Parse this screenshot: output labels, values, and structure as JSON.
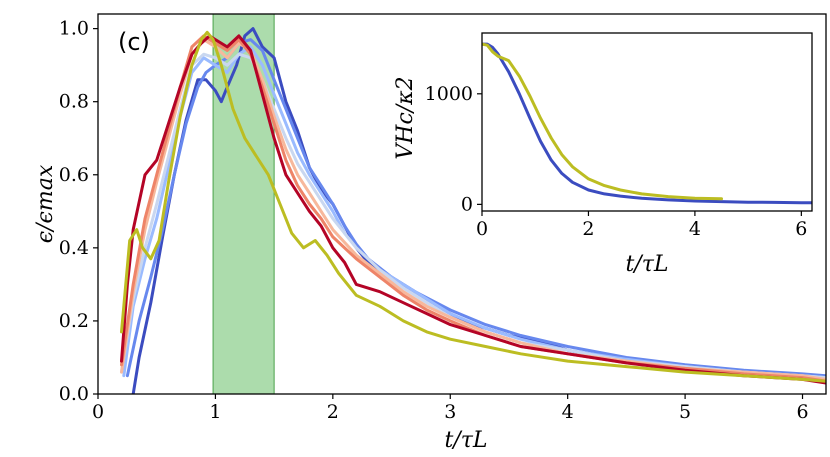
{
  "chart_data": [
    {
      "type": "line",
      "panel_label": "(c)",
      "xlabel": "t/τ_L",
      "ylabel": "ϵ/ϵ_max",
      "xlabel_text": "t/τL",
      "ylabel_text": "ϵ/ϵmax",
      "xlim": [
        0,
        6.2
      ],
      "ylim": [
        0,
        1.04
      ],
      "xticks": [
        0,
        1,
        2,
        3,
        4,
        5,
        6
      ],
      "xtick_labels": [
        "0",
        "1",
        "2",
        "3",
        "4",
        "5",
        "6"
      ],
      "yticks": [
        0.0,
        0.2,
        0.4,
        0.6,
        0.8,
        1.0
      ],
      "ytick_labels": [
        "0.0",
        "0.2",
        "0.4",
        "0.6",
        "0.8",
        "1.0"
      ],
      "shaded_region": {
        "x": [
          0.98,
          1.5
        ],
        "color": "#7fc97f"
      },
      "series": [
        {
          "name": "dark-blue",
          "color": "#3b4cc0",
          "x": [
            0.3,
            0.35,
            0.45,
            0.55,
            0.65,
            0.75,
            0.85,
            0.92,
            1.0,
            1.05,
            1.1,
            1.18,
            1.25,
            1.32,
            1.4,
            1.5,
            1.6,
            1.7,
            1.8,
            1.9,
            2.0,
            2.1,
            2.2,
            2.3,
            2.45,
            2.6,
            2.8,
            3.0,
            3.2,
            3.5,
            3.8,
            4.0,
            4.3,
            4.6,
            5.0,
            5.5,
            6.0,
            6.2
          ],
          "y": [
            0.0,
            0.1,
            0.25,
            0.43,
            0.6,
            0.75,
            0.86,
            0.86,
            0.83,
            0.8,
            0.84,
            0.9,
            0.98,
            1.0,
            0.95,
            0.92,
            0.8,
            0.72,
            0.62,
            0.56,
            0.52,
            0.46,
            0.4,
            0.36,
            0.33,
            0.3,
            0.26,
            0.22,
            0.19,
            0.16,
            0.14,
            0.12,
            0.1,
            0.09,
            0.07,
            0.06,
            0.05,
            0.04
          ]
        },
        {
          "name": "mid-blue",
          "color": "#6788ee",
          "x": [
            0.25,
            0.35,
            0.45,
            0.55,
            0.65,
            0.75,
            0.85,
            0.92,
            1.0,
            1.1,
            1.2,
            1.3,
            1.4,
            1.5,
            1.6,
            1.7,
            1.8,
            1.9,
            2.0,
            2.1,
            2.2,
            2.3,
            2.5,
            2.7,
            3.0,
            3.3,
            3.6,
            4.0,
            4.5,
            5.0,
            5.5,
            6.0,
            6.2
          ],
          "y": [
            0.05,
            0.2,
            0.32,
            0.45,
            0.6,
            0.74,
            0.84,
            0.88,
            0.9,
            0.92,
            0.96,
            0.97,
            0.94,
            0.86,
            0.78,
            0.7,
            0.62,
            0.57,
            0.52,
            0.46,
            0.41,
            0.37,
            0.32,
            0.28,
            0.23,
            0.19,
            0.16,
            0.13,
            0.1,
            0.08,
            0.065,
            0.055,
            0.05
          ]
        },
        {
          "name": "light-blue",
          "color": "#9abbff",
          "x": [
            0.22,
            0.3,
            0.4,
            0.5,
            0.6,
            0.7,
            0.8,
            0.9,
            1.0,
            1.1,
            1.2,
            1.3,
            1.4,
            1.5,
            1.6,
            1.7,
            1.8,
            1.9,
            2.0,
            2.1,
            2.2,
            2.4,
            2.6,
            2.8,
            3.0,
            3.3,
            3.6,
            4.0,
            4.5,
            5.0,
            5.5,
            6.0,
            6.2
          ],
          "y": [
            0.05,
            0.24,
            0.37,
            0.48,
            0.62,
            0.76,
            0.88,
            0.92,
            0.9,
            0.88,
            0.93,
            0.95,
            0.9,
            0.82,
            0.74,
            0.66,
            0.6,
            0.55,
            0.5,
            0.44,
            0.4,
            0.34,
            0.3,
            0.26,
            0.22,
            0.18,
            0.15,
            0.12,
            0.095,
            0.075,
            0.06,
            0.05,
            0.045
          ]
        },
        {
          "name": "light-gray",
          "color": "#c9d7f0",
          "x": [
            0.2,
            0.3,
            0.4,
            0.5,
            0.6,
            0.7,
            0.8,
            0.9,
            1.0,
            1.1,
            1.2,
            1.3,
            1.4,
            1.5,
            1.6,
            1.7,
            1.8,
            1.9,
            2.0,
            2.2,
            2.4,
            2.6,
            2.8,
            3.0,
            3.3,
            3.6,
            4.0,
            4.5,
            5.0,
            5.5,
            6.0,
            6.2
          ],
          "y": [
            0.06,
            0.26,
            0.4,
            0.52,
            0.65,
            0.78,
            0.9,
            0.93,
            0.92,
            0.9,
            0.93,
            0.92,
            0.86,
            0.78,
            0.7,
            0.63,
            0.58,
            0.53,
            0.48,
            0.4,
            0.34,
            0.29,
            0.25,
            0.21,
            0.17,
            0.14,
            0.12,
            0.09,
            0.075,
            0.06,
            0.05,
            0.045
          ]
        },
        {
          "name": "light-salmon",
          "color": "#f7b89c",
          "x": [
            0.2,
            0.3,
            0.4,
            0.5,
            0.6,
            0.7,
            0.8,
            0.9,
            1.0,
            1.1,
            1.2,
            1.3,
            1.4,
            1.5,
            1.6,
            1.7,
            1.8,
            1.9,
            2.0,
            2.2,
            2.4,
            2.6,
            2.8,
            3.0,
            3.3,
            3.6,
            4.0,
            4.5,
            5.0,
            5.5,
            6.0,
            6.2
          ],
          "y": [
            0.06,
            0.28,
            0.45,
            0.58,
            0.7,
            0.82,
            0.93,
            0.97,
            0.95,
            0.92,
            0.96,
            0.94,
            0.86,
            0.76,
            0.67,
            0.6,
            0.55,
            0.5,
            0.45,
            0.38,
            0.33,
            0.28,
            0.24,
            0.21,
            0.17,
            0.14,
            0.11,
            0.09,
            0.07,
            0.06,
            0.05,
            0.04
          ]
        },
        {
          "name": "salmon",
          "color": "#ee8468",
          "x": [
            0.2,
            0.3,
            0.4,
            0.5,
            0.6,
            0.7,
            0.8,
            0.9,
            1.0,
            1.1,
            1.2,
            1.3,
            1.4,
            1.5,
            1.6,
            1.7,
            1.8,
            1.9,
            2.0,
            2.2,
            2.4,
            2.6,
            2.8,
            3.0,
            3.3,
            3.6,
            4.0,
            4.5,
            5.0,
            5.5,
            6.0,
            6.2
          ],
          "y": [
            0.08,
            0.3,
            0.48,
            0.6,
            0.72,
            0.84,
            0.95,
            0.98,
            0.96,
            0.94,
            0.97,
            0.93,
            0.84,
            0.74,
            0.64,
            0.57,
            0.52,
            0.48,
            0.43,
            0.37,
            0.32,
            0.27,
            0.23,
            0.2,
            0.16,
            0.13,
            0.11,
            0.085,
            0.07,
            0.055,
            0.045,
            0.035
          ]
        },
        {
          "name": "dark-red",
          "color": "#b40426",
          "x": [
            0.2,
            0.25,
            0.3,
            0.4,
            0.5,
            0.6,
            0.7,
            0.8,
            0.88,
            0.95,
            1.0,
            1.1,
            1.2,
            1.3,
            1.4,
            1.5,
            1.6,
            1.7,
            1.8,
            1.9,
            2.0,
            2.1,
            2.2,
            2.4,
            2.6,
            2.8,
            3.0,
            3.3,
            3.6,
            4.0,
            4.5,
            5.0,
            5.5,
            6.0,
            6.2
          ],
          "y": [
            0.09,
            0.3,
            0.45,
            0.6,
            0.64,
            0.74,
            0.84,
            0.93,
            0.96,
            0.98,
            0.97,
            0.95,
            0.98,
            0.94,
            0.82,
            0.7,
            0.6,
            0.55,
            0.5,
            0.46,
            0.4,
            0.36,
            0.3,
            0.28,
            0.25,
            0.22,
            0.19,
            0.16,
            0.13,
            0.11,
            0.085,
            0.065,
            0.05,
            0.04,
            0.03
          ]
        },
        {
          "name": "olive",
          "color": "#bcbd22",
          "x": [
            0.2,
            0.27,
            0.33,
            0.38,
            0.45,
            0.52,
            0.6,
            0.7,
            0.8,
            0.88,
            0.93,
            0.98,
            1.05,
            1.15,
            1.25,
            1.35,
            1.45,
            1.55,
            1.65,
            1.75,
            1.85,
            1.95,
            2.05,
            2.2,
            2.4,
            2.6,
            2.8,
            3.0,
            3.3,
            3.6,
            4.0,
            4.5,
            5.0,
            5.5,
            6.0,
            6.2
          ],
          "y": [
            0.17,
            0.42,
            0.45,
            0.4,
            0.37,
            0.42,
            0.58,
            0.76,
            0.9,
            0.97,
            0.99,
            0.97,
            0.9,
            0.78,
            0.7,
            0.65,
            0.6,
            0.52,
            0.44,
            0.4,
            0.42,
            0.38,
            0.33,
            0.27,
            0.24,
            0.2,
            0.17,
            0.15,
            0.13,
            0.11,
            0.09,
            0.075,
            0.06,
            0.05,
            0.04,
            0.035
          ]
        }
      ]
    },
    {
      "type": "line",
      "role": "inset",
      "xlabel": "t/τ_L",
      "ylabel": "VH_c/κ²",
      "xlabel_text": "t/τL",
      "ylabel_text": "VHc/κ2",
      "xlim": [
        0,
        6.2
      ],
      "ylim": [
        -60,
        1550
      ],
      "xticks": [
        0,
        2,
        4,
        6
      ],
      "xtick_labels": [
        "0",
        "2",
        "4",
        "6"
      ],
      "yticks": [
        0,
        1000
      ],
      "ytick_labels": [
        "0",
        "1000"
      ],
      "series": [
        {
          "name": "dark-blue",
          "color": "#3b4cc0",
          "x": [
            0,
            0.1,
            0.2,
            0.3,
            0.5,
            0.7,
            0.9,
            1.1,
            1.3,
            1.5,
            1.7,
            2.0,
            2.3,
            2.6,
            3.0,
            3.5,
            4.0,
            4.5,
            5.0,
            5.5,
            6.0,
            6.2
          ],
          "y": [
            1450,
            1450,
            1420,
            1360,
            1200,
            1000,
            780,
            570,
            400,
            280,
            200,
            130,
            95,
            75,
            55,
            40,
            30,
            25,
            20,
            18,
            15,
            15
          ]
        },
        {
          "name": "olive",
          "color": "#bcbd22",
          "x": [
            0,
            0.1,
            0.2,
            0.3,
            0.5,
            0.7,
            0.9,
            1.1,
            1.3,
            1.5,
            1.7,
            2.0,
            2.3,
            2.6,
            3.0,
            3.5,
            4.0,
            4.5
          ],
          "y": [
            1450,
            1440,
            1380,
            1340,
            1300,
            1160,
            980,
            780,
            600,
            450,
            340,
            230,
            170,
            130,
            95,
            70,
            55,
            50
          ]
        }
      ]
    }
  ]
}
